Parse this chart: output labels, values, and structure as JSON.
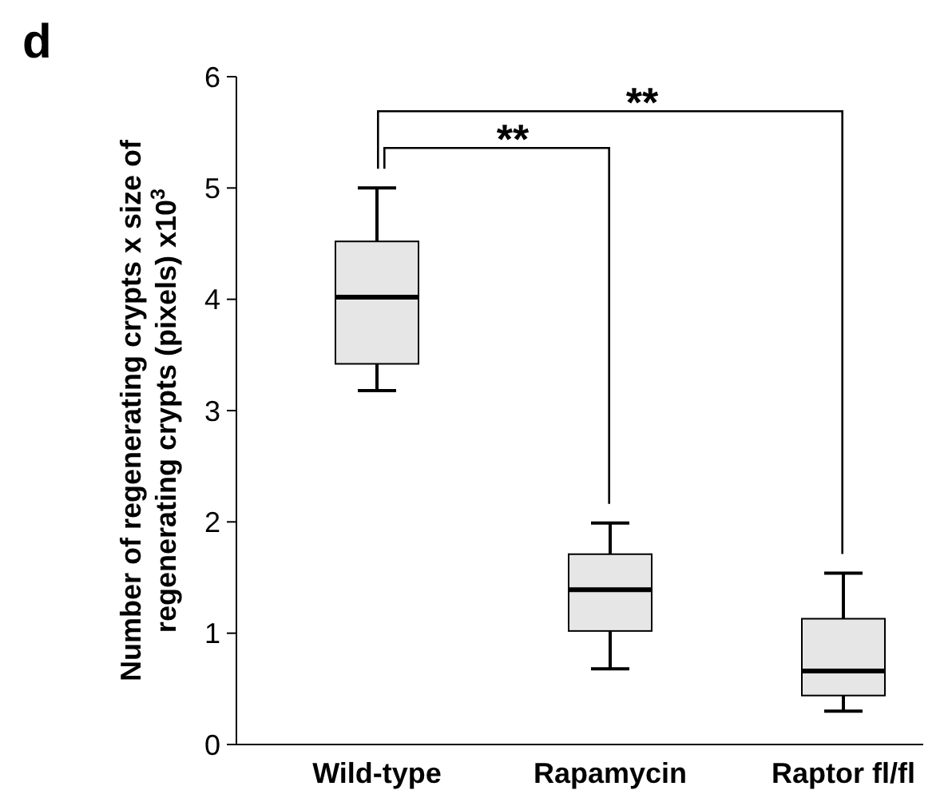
{
  "chart_data": {
    "type": "box",
    "ylabel": "Number of regenerating crypts x size of regenerating crypts (pixels) x10$^{3}$",
    "categories": [
      "Wild-type",
      "Rapamycin",
      "Raptor fl/fl"
    ],
    "boxes": [
      {
        "low": 3.18,
        "q1": 3.42,
        "median": 4.02,
        "q3": 4.52,
        "high": 5.0
      },
      {
        "low": 0.68,
        "q1": 1.02,
        "median": 1.39,
        "q3": 1.71,
        "high": 1.99
      },
      {
        "low": 0.3,
        "q1": 0.44,
        "median": 0.66,
        "q3": 1.13,
        "high": 1.54
      }
    ],
    "color": "#e6e6e6",
    "ylim": [
      0,
      6
    ],
    "yticks": [
      0,
      1,
      2,
      3,
      4,
      5,
      6
    ],
    "grid": false,
    "annotations": [
      "d",
      "**",
      "**"
    ]
  }
}
